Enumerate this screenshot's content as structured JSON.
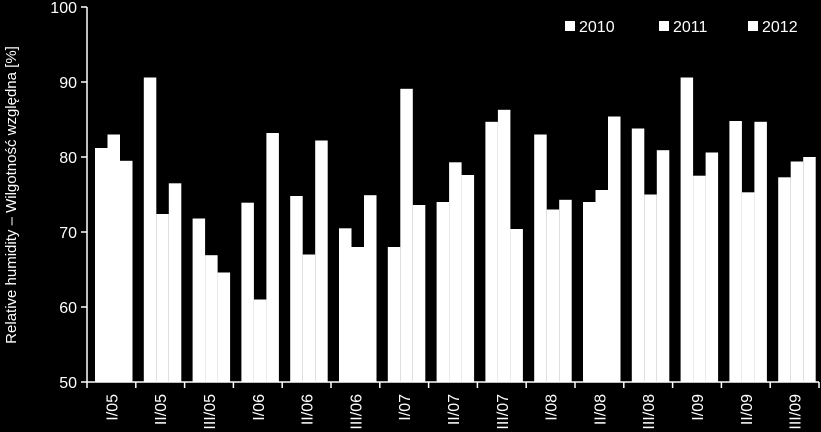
{
  "chart_data": {
    "type": "bar",
    "title": "",
    "ylabel": "Relative humidity – Wilgotność względna [%]",
    "xlabel": "",
    "ylim": [
      50,
      100
    ],
    "yticks": [
      50,
      60,
      70,
      80,
      90,
      100
    ],
    "grid": false,
    "legend_position": "top-right",
    "colors": {
      "background": "#000000",
      "bars": "#ffffff",
      "axes": "#ffffff"
    },
    "categories": [
      "I/05",
      "II/05",
      "III/05",
      "I/06",
      "II/06",
      "III/06",
      "I/07",
      "II/07",
      "III/07",
      "I/08",
      "II/08",
      "III/08",
      "I/09",
      "II/09",
      "III/09"
    ],
    "series": [
      {
        "name": "2010",
        "values": [
          81.2,
          90.6,
          71.8,
          73.9,
          74.8,
          70.5,
          68.0,
          74.0,
          84.7,
          83.0,
          74.0,
          83.8,
          90.6,
          84.8,
          77.3
        ]
      },
      {
        "name": "2011",
        "values": [
          83.0,
          72.4,
          66.9,
          61.0,
          67.0,
          68.0,
          89.1,
          79.3,
          86.3,
          73.0,
          75.6,
          75.0,
          77.5,
          75.3,
          79.4
        ]
      },
      {
        "name": "2012",
        "values": [
          79.5,
          76.5,
          64.6,
          83.2,
          82.2,
          74.9,
          73.6,
          77.6,
          70.4,
          74.3,
          85.4,
          80.9,
          80.6,
          84.7,
          80.0
        ]
      }
    ]
  }
}
